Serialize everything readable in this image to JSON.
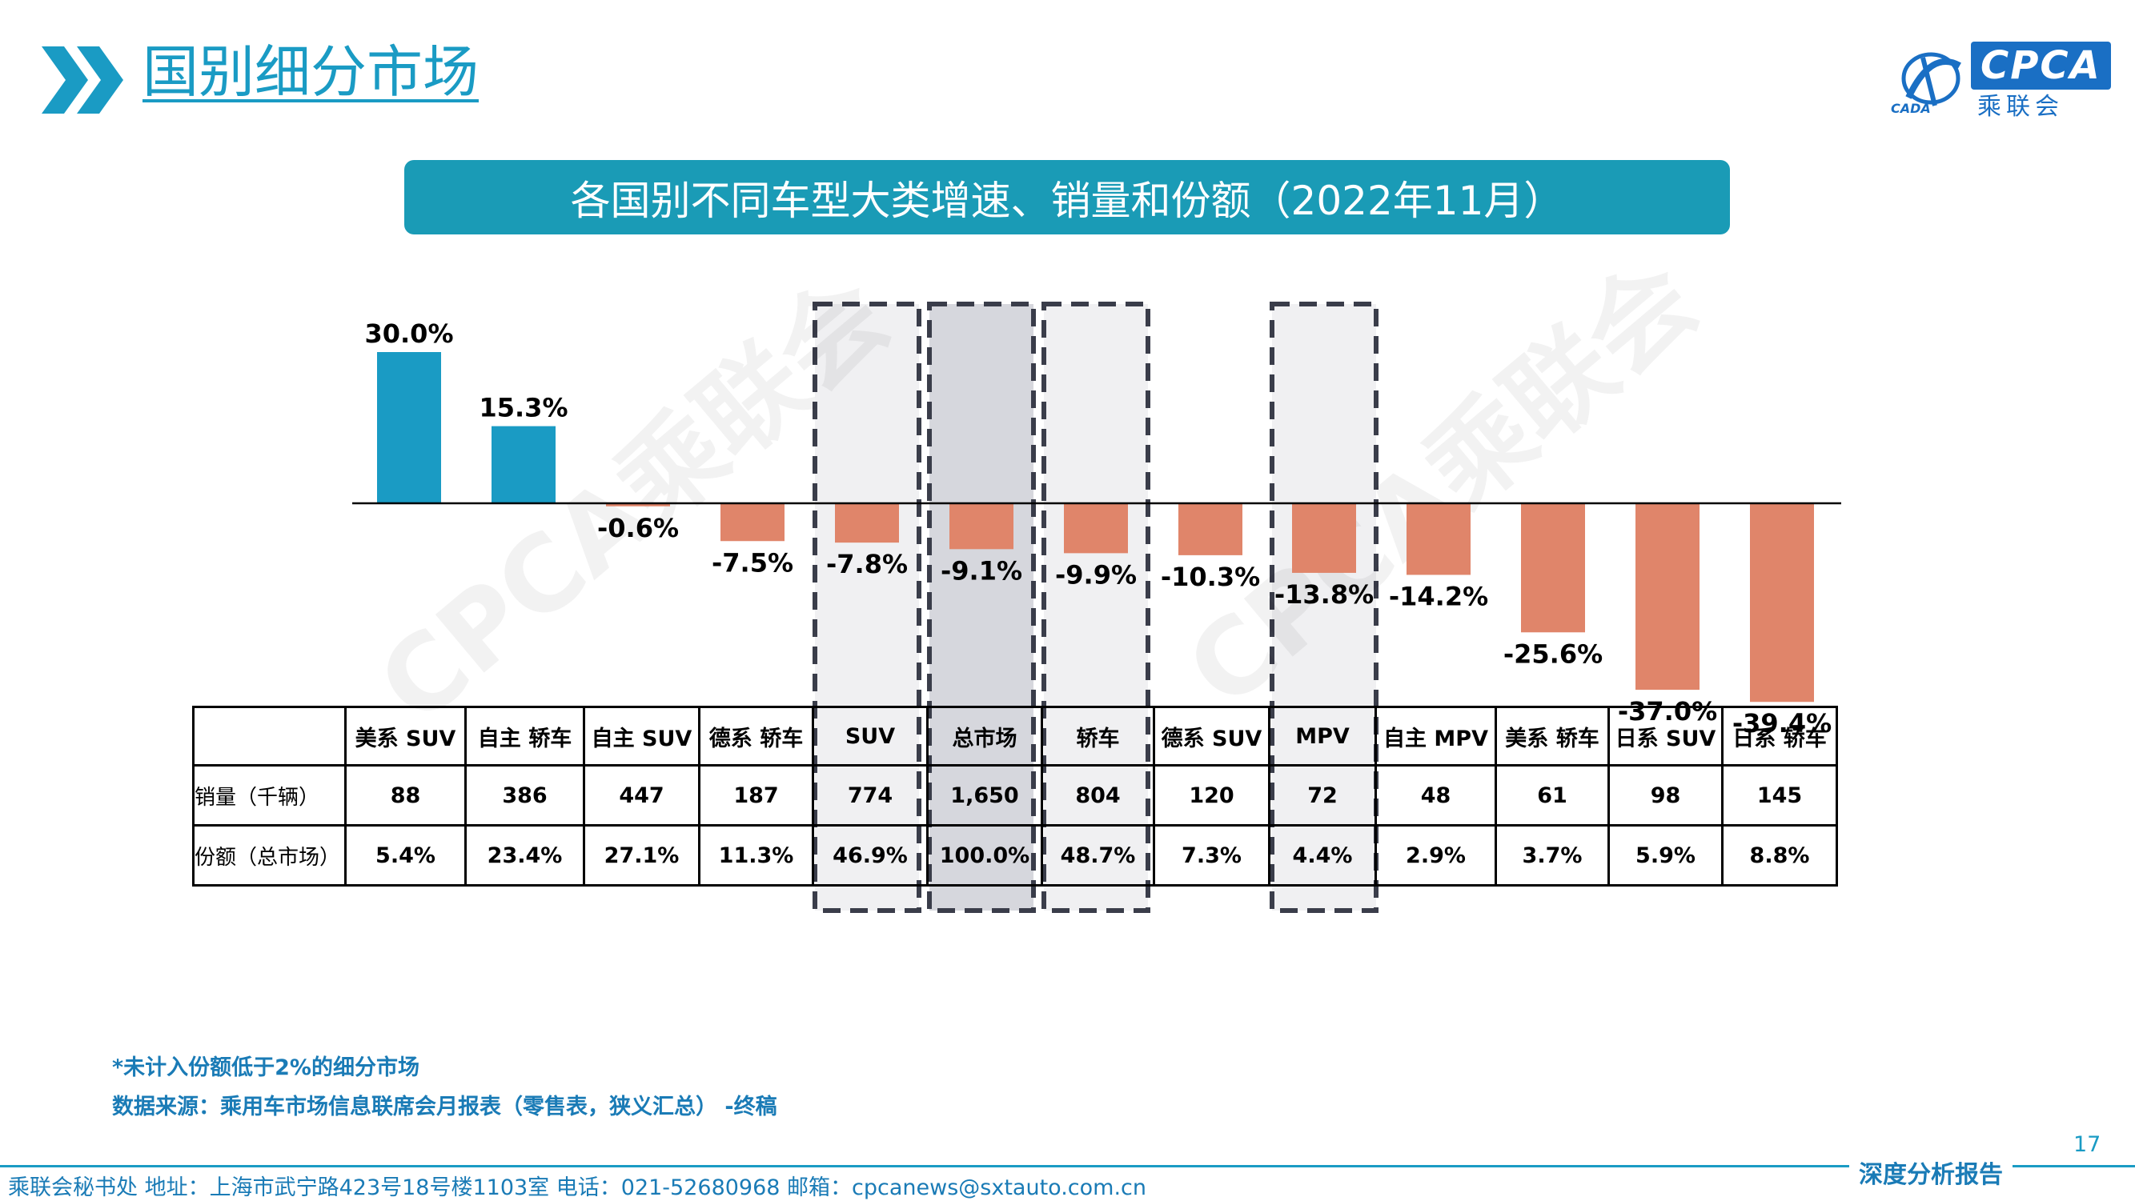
{
  "header": {
    "title": "国别细分市场",
    "logo_text": "CPCA",
    "logo_sub": "乘联会",
    "logo_mark": "CADA"
  },
  "banner": {
    "text": "各国别不同车型大类增速、销量和份额（2022年11月）"
  },
  "watermark": "CPCA乘联会",
  "colors": {
    "positive_bar": "#1a9bc4",
    "negative_bar": "#e0856a",
    "highlight_box": "#f0f0f2",
    "highlight_total": "#d6d7dd",
    "accent": "#1a9bc4"
  },
  "chart_data": {
    "type": "bar",
    "categories": [
      "美系 SUV",
      "自主 轿车",
      "自主 SUV",
      "德系 轿车",
      "SUV",
      "总市场",
      "轿车",
      "德系 SUV",
      "MPV",
      "自主 MPV",
      "美系 轿车",
      "日系 SUV",
      "日系 轿车"
    ],
    "values": [
      30.0,
      15.3,
      -0.6,
      -7.5,
      -7.8,
      -9.1,
      -9.9,
      -10.3,
      -13.8,
      -14.2,
      -25.6,
      -37.0,
      -39.4
    ],
    "labels": [
      "30.0%",
      "15.3%",
      "-0.6%",
      "-7.5%",
      "-7.8%",
      "-9.1%",
      "-9.9%",
      "-10.3%",
      "-13.8%",
      "-14.2%",
      "-25.6%",
      "-37.0%",
      "-39.4%"
    ],
    "highlighted": [
      "SUV",
      "总市场",
      "轿车",
      "MPV"
    ],
    "ylim": [
      -40,
      30
    ],
    "grid": false,
    "legend": "none"
  },
  "table": {
    "row_labels": [
      "销量（千辆）",
      "份额（总市场）"
    ],
    "sales": [
      "88",
      "386",
      "447",
      "187",
      "774",
      "1,650",
      "804",
      "120",
      "72",
      "48",
      "61",
      "98",
      "145"
    ],
    "share": [
      "5.4%",
      "23.4%",
      "27.1%",
      "11.3%",
      "46.9%",
      "100.0%",
      "48.7%",
      "7.3%",
      "4.4%",
      "2.9%",
      "3.7%",
      "5.9%",
      "8.8%"
    ]
  },
  "notes": {
    "note1": "*未计入份额低于2%的细分市场",
    "note2": "数据来源：乘用车市场信息联席会月报表（零售表，狭义汇总） -终稿"
  },
  "footer": {
    "page_number": "17",
    "report_label": "深度分析报告",
    "contact": "乘联会秘书处   地址：上海市武宁路423号18号楼1103室   电话：021-52680968   邮箱：cpcanews@sxtauto.com.cn"
  }
}
